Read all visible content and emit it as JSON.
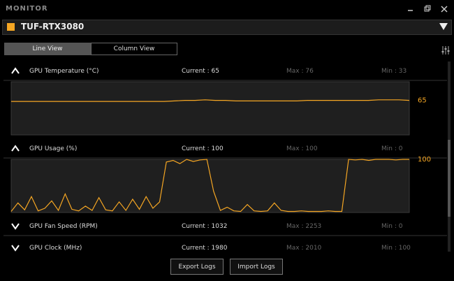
{
  "header": {
    "title": "MONITOR",
    "device": "TUF-RTX3080"
  },
  "tabs": [
    "Line View",
    "Column View"
  ],
  "metrics": [
    {
      "label": "GPU Temperature (°C)",
      "current": "Current : 65",
      "max": "Max : 76",
      "min": "Min : 33",
      "expanded": true,
      "graph_value": 65,
      "values": [
        63,
        63,
        63,
        63,
        63,
        63,
        63,
        63,
        63,
        63,
        63,
        63,
        63,
        63,
        63,
        63,
        64,
        65,
        65,
        66,
        65,
        65,
        64,
        64,
        64,
        64,
        64,
        64,
        64,
        65,
        65,
        65,
        65,
        65,
        65,
        65,
        66,
        66,
        66,
        65
      ]
    },
    {
      "label": "GPU Usage (%)",
      "current": "Current : 100",
      "max": "Max : 100",
      "min": "Min : 0",
      "expanded": true,
      "graph_value": 100,
      "values": [
        2,
        18,
        5,
        30,
        3,
        8,
        22,
        4,
        35,
        6,
        3,
        12,
        4,
        28,
        5,
        3,
        20,
        4,
        25,
        6,
        30,
        8,
        20,
        95,
        98,
        92,
        100,
        96,
        99,
        100,
        40,
        4,
        10,
        3,
        2,
        15,
        3,
        2,
        3,
        18,
        4,
        2,
        2,
        3,
        2,
        2,
        2,
        3,
        2,
        2,
        100,
        99,
        100,
        98,
        100,
        100,
        100,
        99,
        100,
        100
      ]
    },
    {
      "label": "GPU Fan Speed (RPM)",
      "current": "Current : 1032",
      "max": "Max : 2253",
      "min": "Min : 0",
      "expanded": false
    },
    {
      "label": "GPU Clock (MHz)",
      "current": "Current : 1980",
      "max": "Max : 2010",
      "min": "Min : 100",
      "expanded": false
    }
  ],
  "buttons": [
    "Export Logs",
    "Import Logs"
  ]
}
